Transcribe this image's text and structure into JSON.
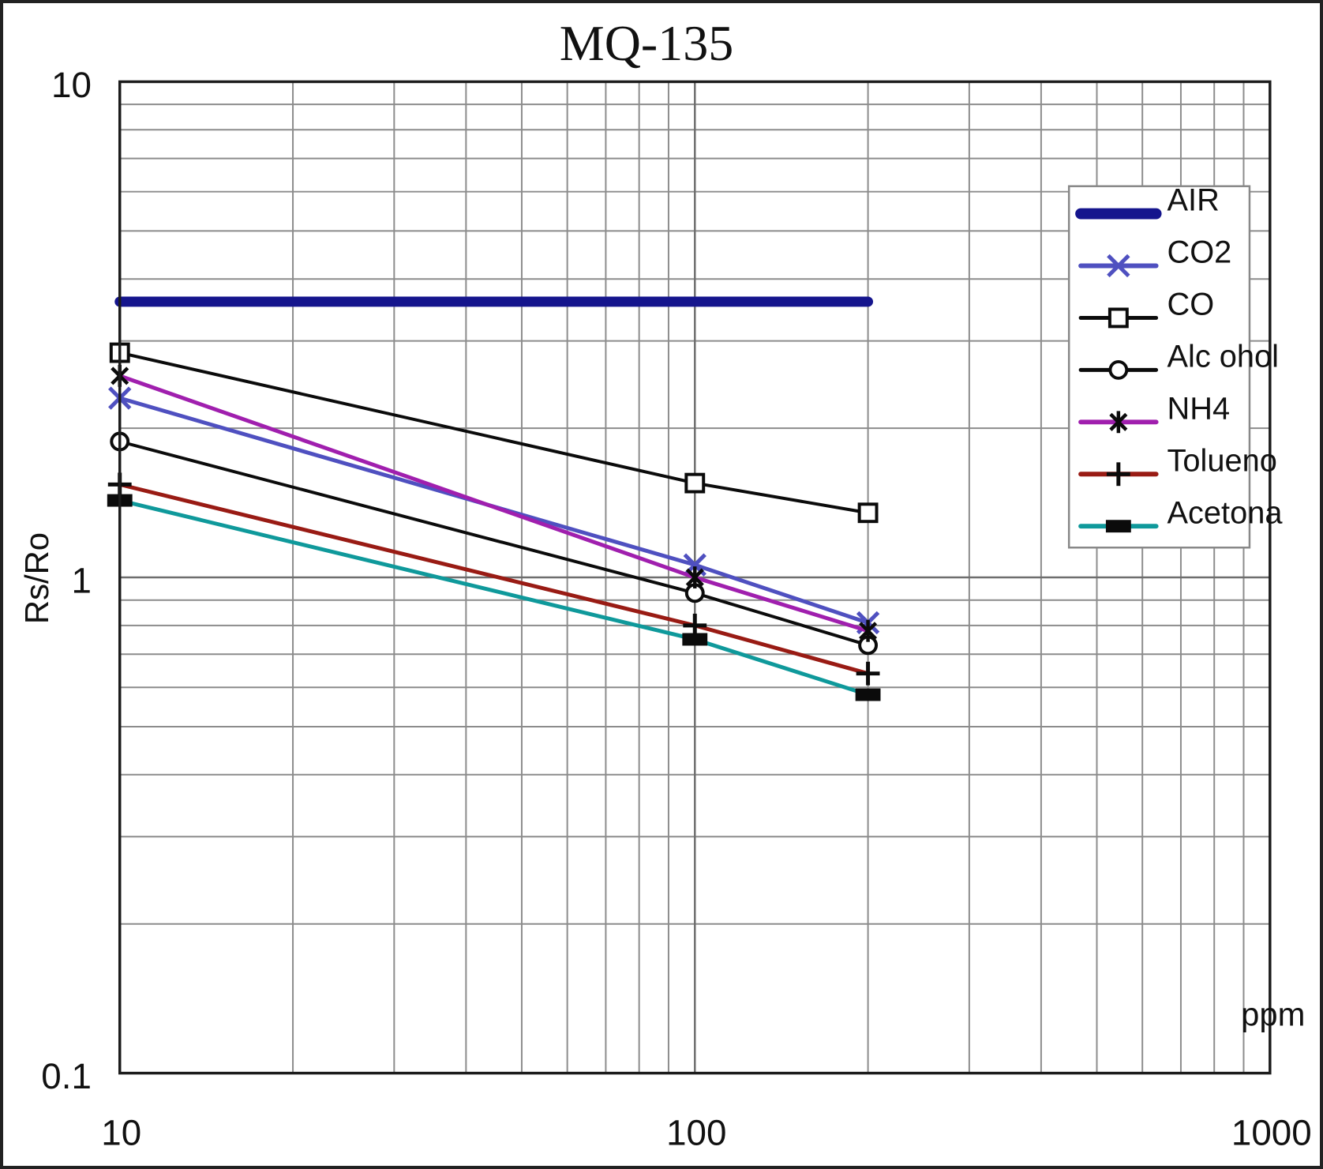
{
  "figure": {
    "title": "MQ-135"
  },
  "chart_data": {
    "type": "line",
    "scale": "log-log",
    "title": "MQ-135",
    "xlabel": "ppm",
    "ylabel": "Rs/Ro",
    "xlim": [
      10,
      1000
    ],
    "ylim": [
      0.1,
      10
    ],
    "grid": "minor log gridlines on both axes",
    "legend_position": "upper right",
    "x_ticks": [
      {
        "value": 10,
        "label": "10"
      },
      {
        "value": 100,
        "label": "100"
      },
      {
        "value": 1000,
        "label": "1000"
      }
    ],
    "y_ticks": [
      {
        "value": 10,
        "label": "10"
      },
      {
        "value": 1,
        "label": "1"
      },
      {
        "value": 0.1,
        "label": "0.1"
      }
    ],
    "series": [
      {
        "name": "AIR",
        "x": [
          10,
          200
        ],
        "y": [
          3.6,
          3.6
        ],
        "color": "#15158d",
        "line_width": 13,
        "marker": "none",
        "marker_color": "#15158d"
      },
      {
        "name": "CO2",
        "x": [
          10,
          100,
          200
        ],
        "y": [
          2.3,
          1.06,
          0.81
        ],
        "color": "#4f50c0",
        "line_width": 5,
        "marker": "x",
        "marker_color": "#4f50c0"
      },
      {
        "name": "CO",
        "x": [
          10,
          100,
          200
        ],
        "y": [
          2.84,
          1.55,
          1.35
        ],
        "color": "#0b0b0b",
        "line_width": 4,
        "marker": "square-open",
        "marker_color": "#0b0b0b"
      },
      {
        "name": "Alc ohol",
        "x": [
          10,
          100,
          200
        ],
        "y": [
          1.88,
          0.93,
          0.73
        ],
        "color": "#0b0b0b",
        "line_width": 4,
        "marker": "circle-open",
        "marker_color": "#0b0b0b"
      },
      {
        "name": "NH4",
        "x": [
          10,
          100,
          200
        ],
        "y": [
          2.55,
          1.0,
          0.78
        ],
        "color": "#a01fae",
        "line_width": 5,
        "marker": "asterisk",
        "marker_color": "#0b0b0b"
      },
      {
        "name": "Tolueno",
        "x": [
          10,
          100,
          200
        ],
        "y": [
          1.54,
          0.8,
          0.64
        ],
        "color": "#991b14",
        "line_width": 5,
        "marker": "plus",
        "marker_color": "#0b0b0b"
      },
      {
        "name": "Acetona",
        "x": [
          10,
          100,
          200
        ],
        "y": [
          1.43,
          0.75,
          0.58
        ],
        "color": "#0f999b",
        "line_width": 5,
        "marker": "rect-filled",
        "marker_color": "#0b0b0b"
      }
    ]
  }
}
